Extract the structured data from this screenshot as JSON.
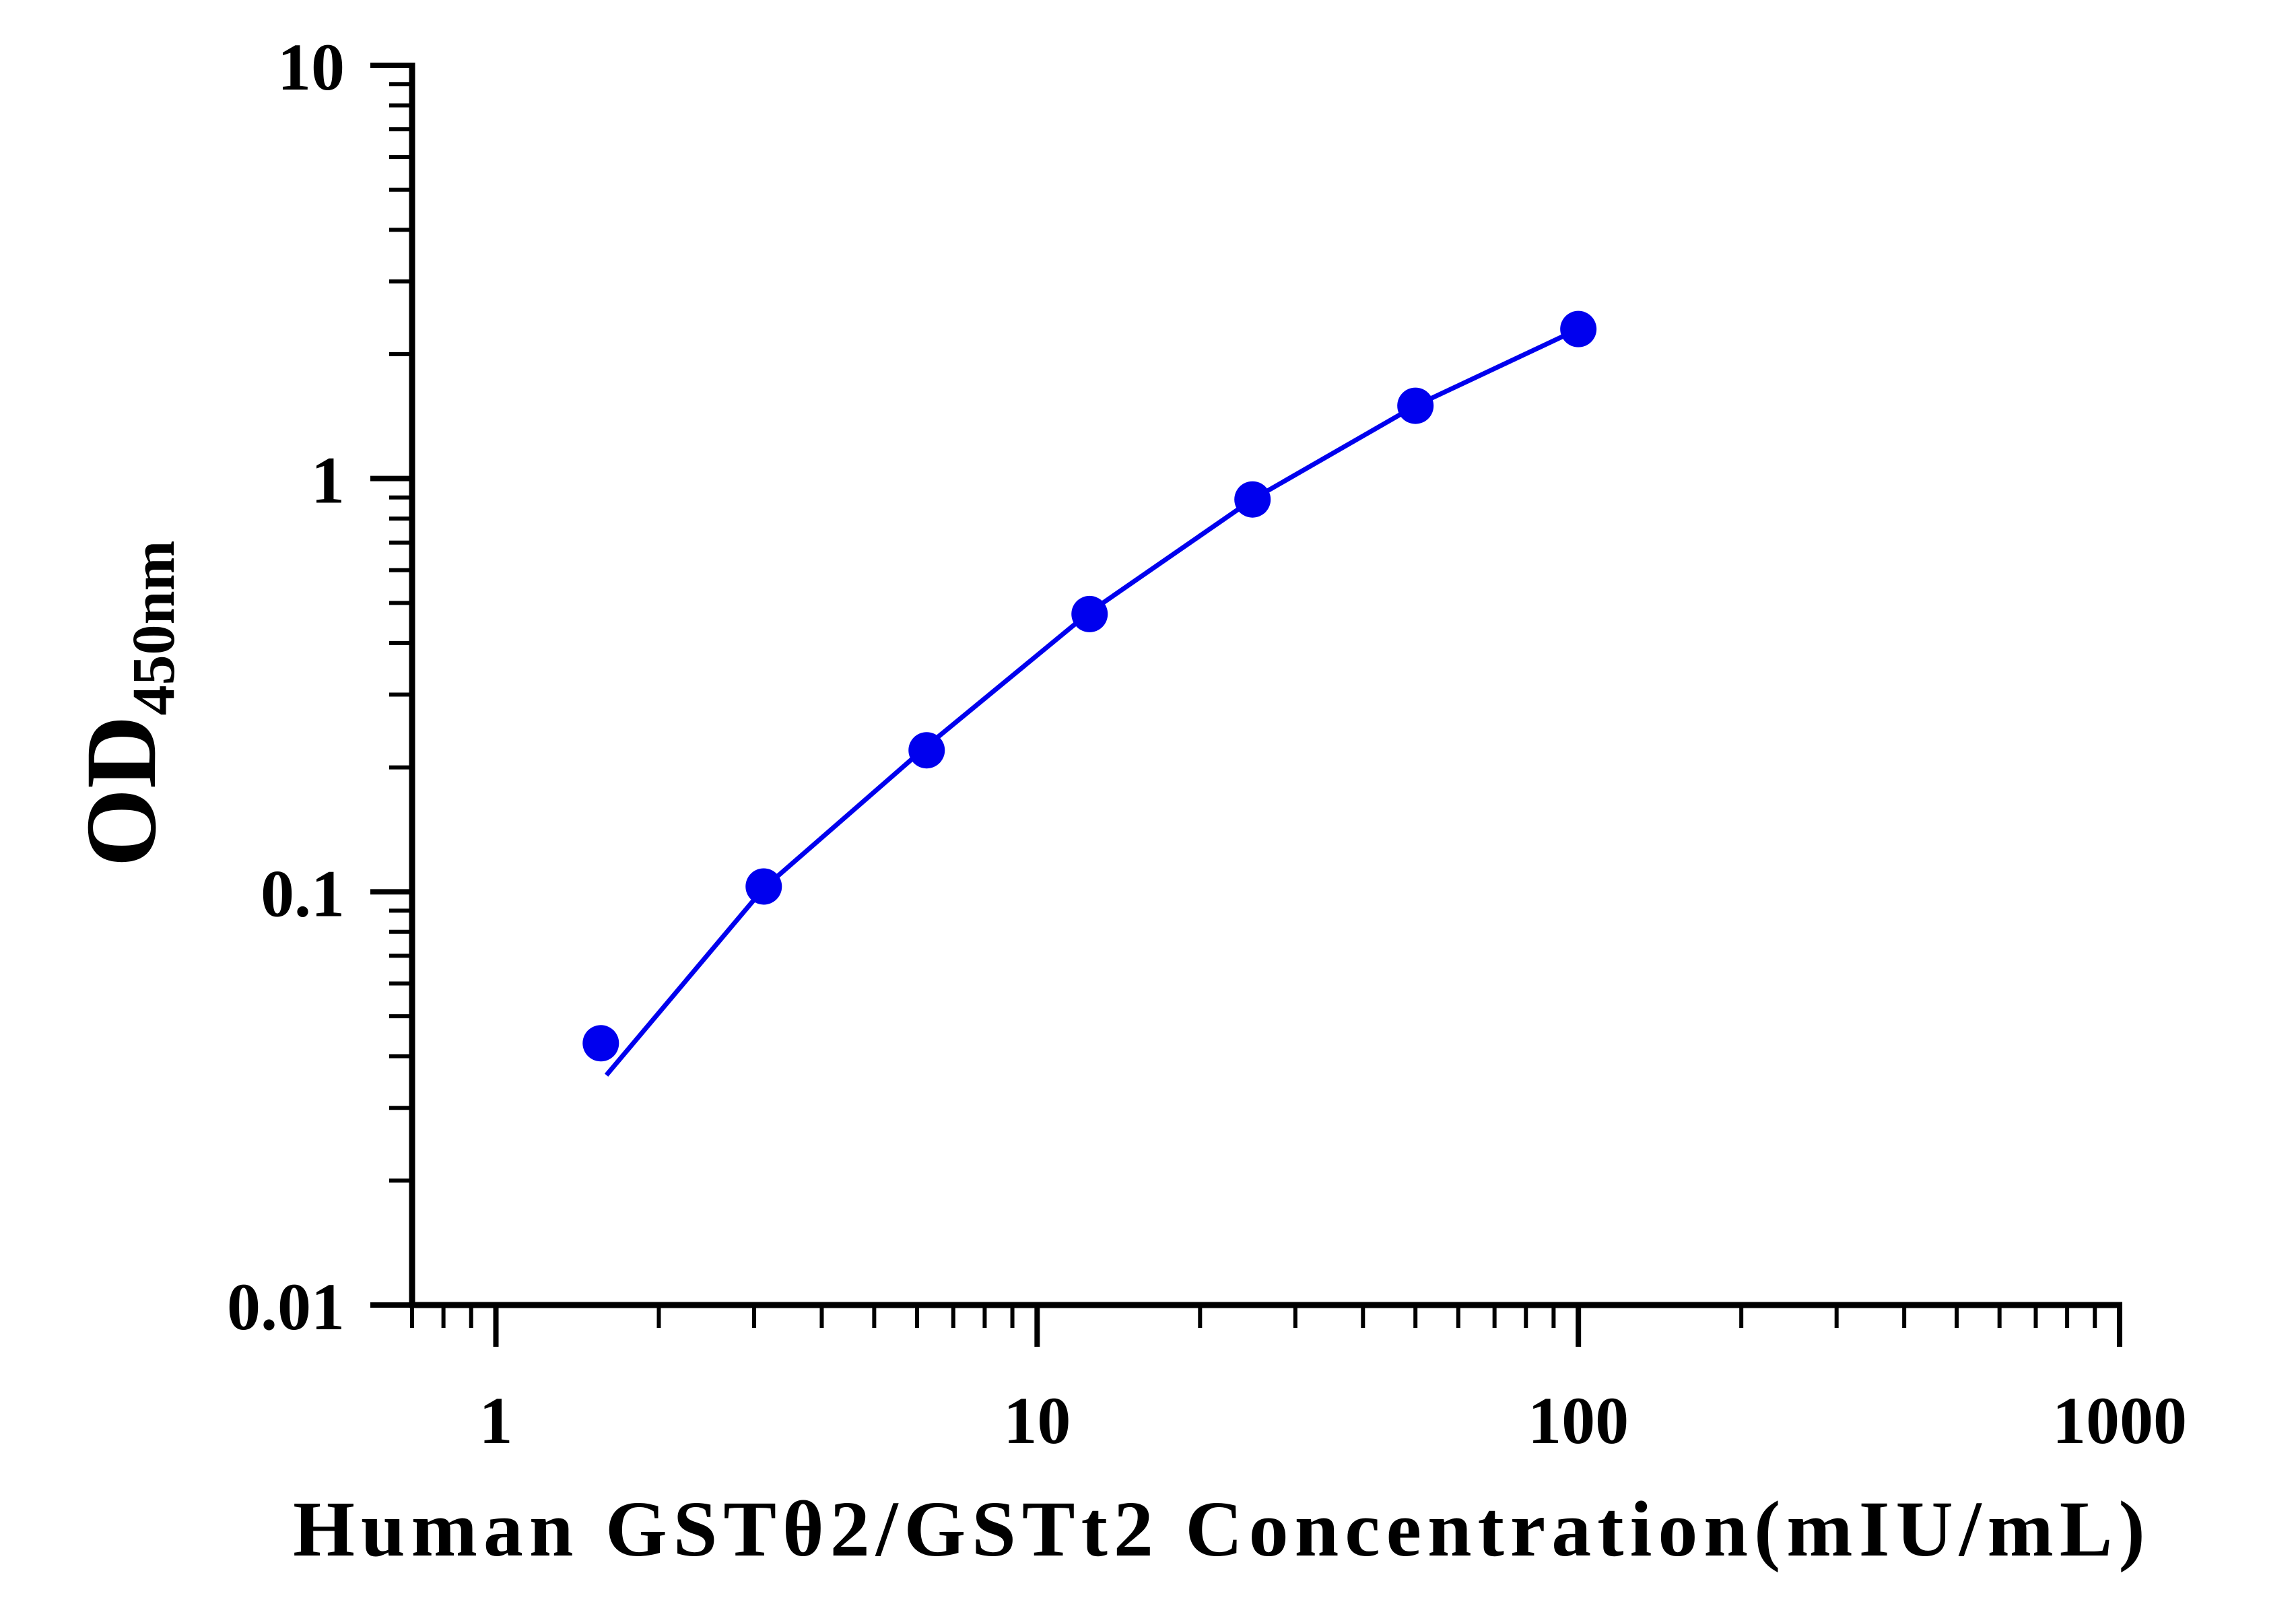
{
  "chart_data": {
    "type": "line",
    "xlabel": "Human GSTθ2/GSTt2 Concentration(mIU/mL)",
    "ylabel": "OD",
    "ylabel_subscript": "450nm",
    "x_scale": "log",
    "y_scale": "log",
    "xlim": [
      0.7,
      1000
    ],
    "ylim": [
      0.01,
      10
    ],
    "x_ticks": [
      1,
      10,
      100,
      1000
    ],
    "x_tick_labels": [
      "1",
      "10",
      "100",
      "1000"
    ],
    "y_ticks": [
      0.01,
      0.1,
      1,
      10
    ],
    "y_tick_labels": [
      "0.01",
      "0.1",
      "1",
      "10"
    ],
    "grid": false,
    "series": [
      {
        "color": "#0000ee",
        "points": [
          {
            "x": 1.5625,
            "y": 0.043
          },
          {
            "x": 3.125,
            "y": 0.103
          },
          {
            "x": 6.25,
            "y": 0.22
          },
          {
            "x": 12.5,
            "y": 0.47
          },
          {
            "x": 25,
            "y": 0.89
          },
          {
            "x": 50,
            "y": 1.5
          },
          {
            "x": 100,
            "y": 2.3
          }
        ],
        "fit_curve": [
          {
            "x": 1.6,
            "y": 0.036
          },
          {
            "x": 3.125,
            "y": 0.102
          },
          {
            "x": 6.25,
            "y": 0.225
          },
          {
            "x": 12.5,
            "y": 0.475
          },
          {
            "x": 25,
            "y": 0.89
          },
          {
            "x": 50,
            "y": 1.5
          },
          {
            "x": 100,
            "y": 2.3
          }
        ]
      }
    ]
  }
}
